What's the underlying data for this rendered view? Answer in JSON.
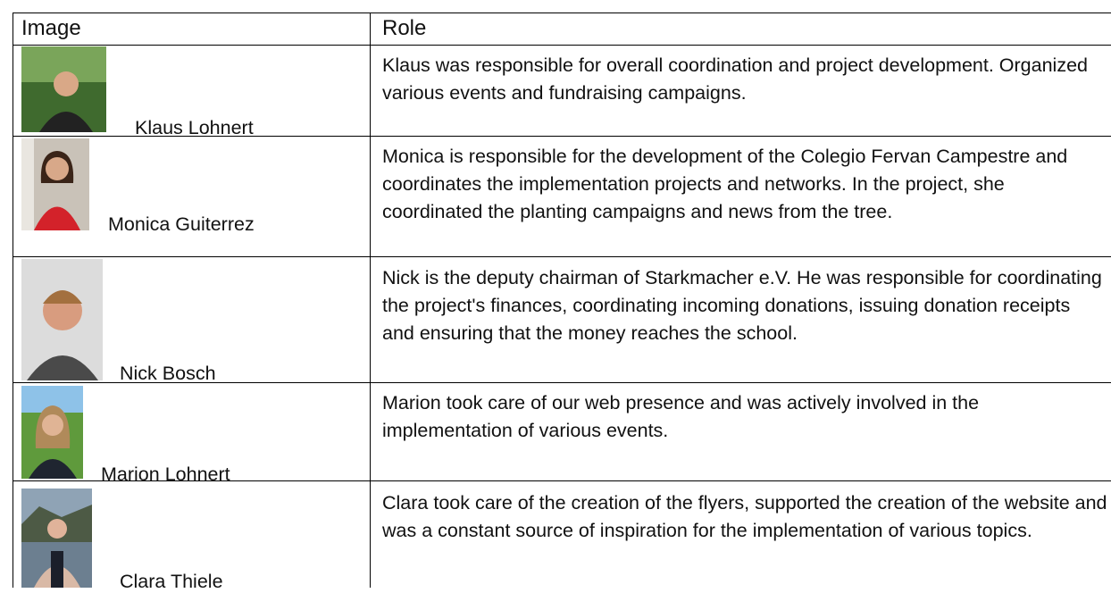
{
  "table": {
    "headers": [
      "Image",
      "Role"
    ],
    "rows": [
      {
        "name": "Klaus Lohnert",
        "role": "Klaus was responsible for overall coordination and project development. Organized various events and fundraising campaigns."
      },
      {
        "name": "Monica Guiterrez",
        "role": "Monica is responsible for the development of the Colegio Fervan Campestre and coordinates the implementation projects and networks. In the project, she coordinated the planting campaigns and news from the tree."
      },
      {
        "name": "Nick Bosch",
        "role": "Nick is the deputy chairman of Starkmacher e.V. He was responsible for coordinating the project's finances, coordinating incoming donations, issuing donation receipts and ensuring that the money reaches the school."
      },
      {
        "name": "Marion Lohnert",
        "role": "Marion took care of our web presence and was actively involved in the implementation of various events."
      },
      {
        "name": "Clara Thiele",
        "role": "Clara took care of the creation of the flyers, supported the creation of the website and was a constant source of inspiration for the implementation of various topics."
      }
    ]
  }
}
